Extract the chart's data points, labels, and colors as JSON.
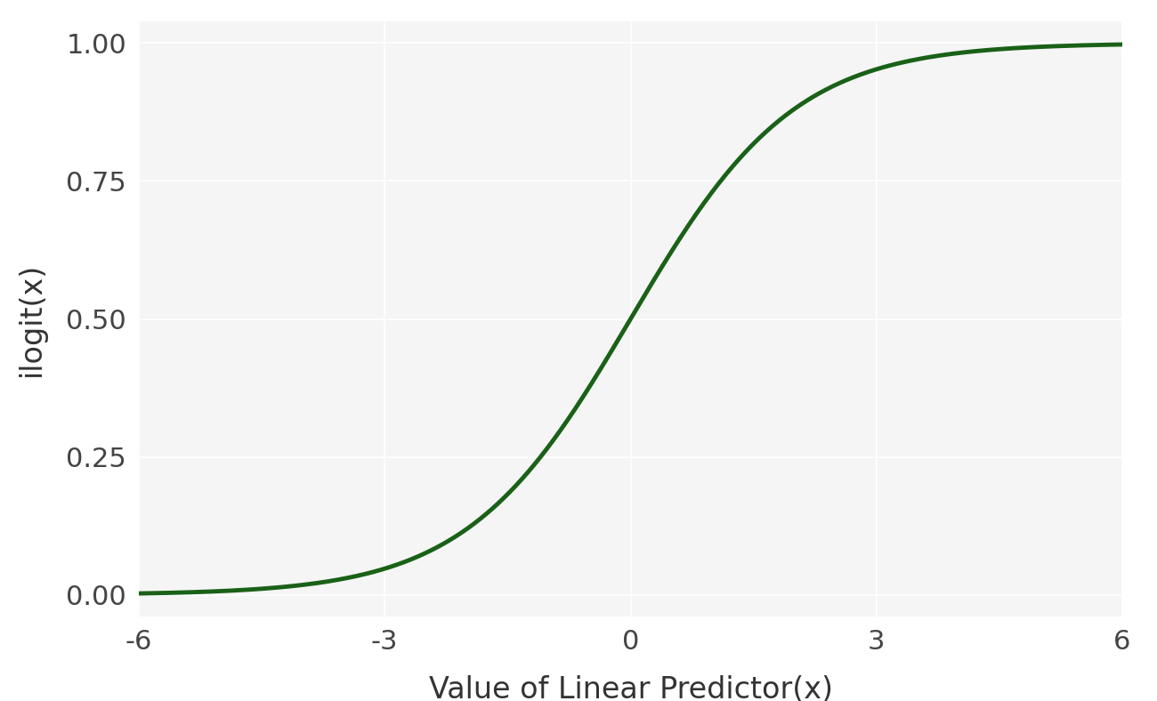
{
  "x_min": -6,
  "x_max": 6,
  "x_ticks": [
    -6,
    -3,
    0,
    3,
    6
  ],
  "y_ticks": [
    0.0,
    0.25,
    0.5,
    0.75,
    1.0
  ],
  "y_min": -0.04,
  "y_max": 1.04,
  "line_color": "#1a6118",
  "line_width": 3.5,
  "xlabel": "Value of Linear Predictor(x)",
  "ylabel": "ilogit(x)",
  "background_color": "#ffffff",
  "panel_background": "#f5f5f5",
  "grid_color": "#ffffff",
  "axis_label_fontsize": 24,
  "tick_fontsize": 22,
  "tick_color": "#444444",
  "label_color": "#333333"
}
